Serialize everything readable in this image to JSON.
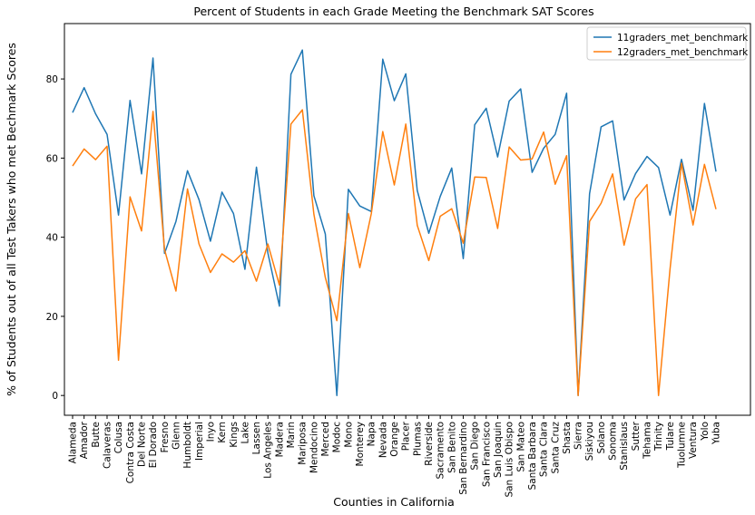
{
  "chart_data": {
    "type": "line",
    "title": "Percent of Students in each Grade Meeting the Benchmark SAT Scores",
    "xlabel": "Counties in California",
    "ylabel": "% of Students out of all Test Takers who met Bechmark Scores",
    "ylim": [
      -5,
      94
    ],
    "yticks": [
      0,
      20,
      40,
      60,
      80
    ],
    "grid": false,
    "legend_position": "top-right",
    "categories": [
      "Alameda",
      "Amador",
      "Butte",
      "Calaveras",
      "Colusa",
      "Contra Costa",
      "Del Norte",
      "El Dorado",
      "Fresno",
      "Glenn",
      "Humboldt",
      "Imperial",
      "Inyo",
      "Kern",
      "Kings",
      "Lake",
      "Lassen",
      "Los Angeles",
      "Madera",
      "Marin",
      "Mariposa",
      "Mendocino",
      "Merced",
      "Modoc",
      "Mono",
      "Monterey",
      "Napa",
      "Nevada",
      "Orange",
      "Placer",
      "Plumas",
      "Riverside",
      "Sacramento",
      "San Benito",
      "San Bernardino",
      "San Diego",
      "San Francisco",
      "San Joaquin",
      "San Luis Obispo",
      "San Mateo",
      "Santa Barbara",
      "Santa Clara",
      "Santa Cruz",
      "Shasta",
      "Sierra",
      "Siskiyou",
      "Solano",
      "Sonoma",
      "Stanislaus",
      "Sutter",
      "Tehama",
      "Trinity",
      "Tulare",
      "Tuolumne",
      "Ventura",
      "Yolo",
      "Yuba"
    ],
    "series": [
      {
        "name": "11graders_met_benchmark",
        "color": "#1f77b4",
        "values": [
          71.5,
          77.8,
          71.2,
          66.0,
          45.6,
          74.6,
          56.0,
          85.3,
          35.9,
          44.0,
          56.8,
          49.5,
          39.0,
          51.4,
          46.0,
          31.9,
          57.7,
          36.0,
          22.6,
          81.2,
          87.3,
          50.5,
          40.8,
          0.0,
          52.1,
          47.9,
          46.5,
          85.0,
          74.5,
          81.3,
          51.8,
          41.0,
          50.3,
          57.5,
          34.6,
          68.4,
          72.6,
          60.3,
          74.4,
          77.5,
          56.4,
          62.5,
          66.0,
          76.4,
          0.0,
          51.0,
          67.9,
          69.4,
          49.4,
          56.1,
          60.4,
          57.6,
          45.6,
          59.7,
          46.8,
          73.8,
          56.6
        ]
      },
      {
        "name": "12graders_met_benchmark",
        "color": "#ff7f0e",
        "values": [
          58.0,
          62.3,
          59.6,
          63.0,
          8.9,
          50.2,
          41.6,
          71.8,
          36.9,
          26.4,
          52.2,
          38.3,
          31.1,
          35.8,
          33.7,
          36.6,
          28.9,
          38.3,
          27.9,
          68.6,
          72.2,
          45.8,
          29.8,
          18.9,
          46.0,
          32.3,
          46.0,
          66.7,
          53.2,
          68.6,
          43.0,
          34.1,
          45.3,
          47.2,
          38.5,
          55.2,
          55.1,
          42.2,
          62.8,
          59.5,
          59.8,
          66.6,
          53.4,
          60.6,
          0.0,
          44.0,
          48.6,
          56.0,
          38.0,
          49.7,
          53.3,
          0.0,
          32.0,
          58.7,
          43.1,
          58.4,
          47.1
        ]
      }
    ]
  }
}
